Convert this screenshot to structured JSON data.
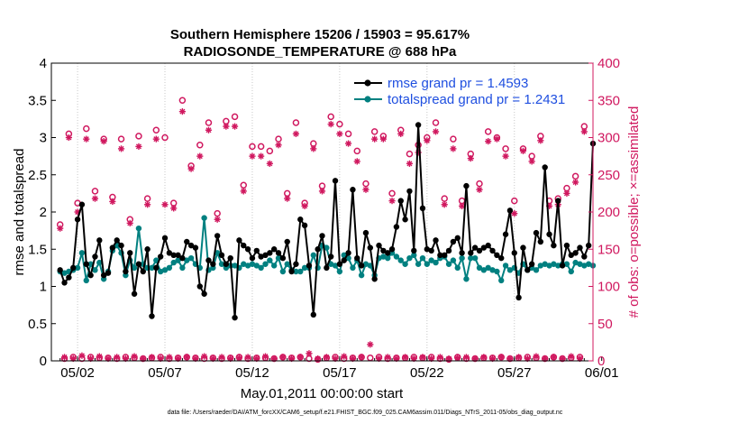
{
  "chart_data": {
    "type": "line",
    "title": "Southern Hemisphere 15206 / 15903 = 95.617%",
    "subtitle": "RADIOSONDE_TEMPERATURE @ 688 hPa",
    "xlabel": "May.01,2011 00:00:00 start",
    "ylabel_left": "rmse and totalspread",
    "ylabel_right": "# of obs: o=possible; ×=assimilated",
    "footnote": "data file: /Users/raeder/DAI/ATM_forcXX/CAM6_setup/f.e21.FHIST_BGC.f09_025.CAM6assim.011/Diags_NTrS_2011-05/obs_diag_output.nc",
    "xlim_days": [
      0.5,
      31.5
    ],
    "ylim_left": [
      0,
      4
    ],
    "ylim_right": [
      0,
      400
    ],
    "x_ticks": [
      {
        "day": 2,
        "label": "05/02"
      },
      {
        "day": 7,
        "label": "05/07"
      },
      {
        "day": 12,
        "label": "05/12"
      },
      {
        "day": 17,
        "label": "05/17"
      },
      {
        "day": 22,
        "label": "05/22"
      },
      {
        "day": 27,
        "label": "05/27"
      },
      {
        "day": 32,
        "label": "06/01"
      }
    ],
    "y_ticks_left": [
      "0",
      "0.5",
      "1",
      "1.5",
      "2",
      "2.5",
      "3",
      "3.5",
      "4"
    ],
    "y_ticks_right": [
      "0",
      "50",
      "100",
      "150",
      "200",
      "250",
      "300",
      "350",
      "400"
    ],
    "x_start_day": 1.0,
    "x_step_day": 0.25,
    "legend": [
      {
        "name": "rmse  grand pr = 1.4593",
        "color": "#000000"
      },
      {
        "name": "totalspread  grand pr = 1.2431",
        "color": "#008080"
      }
    ],
    "series": [
      {
        "name": "rmse",
        "color": "#000000",
        "values": [
          1.22,
          1.05,
          1.12,
          1.25,
          1.9,
          2.1,
          1.3,
          1.15,
          1.4,
          1.62,
          1.15,
          1.18,
          1.52,
          1.62,
          1.55,
          1.2,
          1.45,
          0.9,
          1.3,
          1.2,
          1.5,
          0.6,
          1.25,
          1.4,
          1.65,
          1.45,
          1.42,
          1.42,
          1.38,
          1.6,
          1.55,
          1.52,
          1.0,
          0.9,
          1.35,
          1.3,
          1.68,
          1.42,
          1.3,
          1.38,
          0.58,
          1.62,
          1.55,
          1.5,
          1.38,
          1.48,
          1.4,
          1.42,
          1.45,
          1.5,
          1.45,
          1.38,
          1.6,
          1.2,
          1.3,
          1.9,
          1.82,
          1.28,
          0.62,
          1.5,
          1.68,
          1.25,
          1.4,
          2.42,
          1.3,
          1.35,
          1.45,
          2.3,
          1.38,
          1.28,
          1.72,
          1.52,
          1.1,
          1.55,
          1.48,
          1.45,
          1.5,
          1.8,
          2.15,
          1.9,
          2.28,
          1.48,
          3.17,
          2.05,
          1.5,
          1.48,
          1.62,
          1.42,
          1.42,
          1.48,
          1.6,
          1.65,
          1.45,
          2.35,
          1.45,
          1.52,
          1.48,
          1.52,
          1.55,
          1.48,
          1.42,
          1.38,
          1.7,
          2.02,
          1.45,
          0.85,
          1.52,
          1.22,
          1.3,
          1.72,
          1.6,
          2.6,
          1.7,
          1.55,
          2.15,
          1.28,
          1.55,
          1.42,
          1.45,
          1.52,
          1.4,
          1.55,
          2.92
        ]
      },
      {
        "name": "totalspread",
        "color": "#008080",
        "values": [
          1.2,
          1.18,
          1.2,
          1.22,
          1.25,
          1.45,
          1.08,
          1.3,
          1.22,
          1.32,
          1.1,
          1.2,
          1.48,
          1.55,
          1.45,
          1.15,
          1.35,
          1.25,
          1.78,
          1.3,
          1.25,
          1.25,
          1.35,
          1.2,
          1.22,
          1.25,
          1.32,
          1.35,
          1.25,
          1.35,
          1.38,
          1.3,
          1.25,
          1.92,
          1.22,
          1.25,
          1.45,
          1.3,
          1.25,
          1.28,
          1.28,
          1.25,
          1.3,
          1.28,
          1.3,
          1.28,
          1.25,
          1.3,
          1.35,
          1.28,
          1.38,
          1.2,
          1.3,
          1.22,
          1.2,
          1.2,
          1.25,
          1.25,
          1.42,
          1.25,
          1.55,
          1.52,
          1.3,
          1.28,
          1.2,
          1.42,
          1.38,
          1.25,
          1.35,
          1.15,
          1.3,
          1.28,
          1.15,
          1.38,
          1.4,
          1.38,
          1.45,
          1.4,
          1.35,
          1.3,
          1.38,
          1.42,
          1.3,
          1.38,
          1.3,
          1.35,
          1.32,
          1.38,
          1.4,
          1.3,
          1.35,
          1.25,
          1.38,
          1.1,
          1.38,
          1.38,
          1.25,
          1.22,
          1.25,
          1.22,
          1.2,
          1.08,
          1.28,
          1.22,
          1.25,
          1.18,
          1.3,
          1.22,
          1.25,
          1.22,
          1.28,
          1.3,
          1.28,
          1.3,
          1.28,
          1.3,
          1.3,
          1.2,
          1.32,
          1.3,
          1.28,
          1.3,
          1.28
        ]
      },
      {
        "name": "obs possible",
        "color": "#d0185f",
        "values": [
          183,
          3,
          305,
          5,
          212,
          3,
          312,
          5,
          228,
          4,
          298,
          4,
          220,
          3,
          298,
          5,
          190,
          4,
          302,
          3,
          218,
          4,
          310,
          5,
          300,
          3,
          212,
          4,
          350,
          5,
          262,
          4,
          290,
          3,
          320,
          4,
          198,
          3,
          322,
          4,
          328,
          5,
          236,
          3,
          288,
          4,
          288,
          4,
          282,
          3,
          298,
          5,
          225,
          4,
          320,
          5,
          212,
          3,
          292,
          2,
          235,
          4,
          328,
          5,
          318,
          3,
          305,
          4,
          282,
          5,
          238,
          4,
          308,
          5,
          302,
          3,
          225,
          4,
          310,
          4,
          278,
          5,
          290,
          4,
          300,
          5,
          320,
          3,
          218,
          2,
          298,
          5,
          215,
          3,
          278,
          3,
          238,
          4,
          308,
          4,
          300,
          5,
          285,
          3,
          215,
          4,
          285,
          5,
          275,
          4,
          302,
          3,
          215,
          5,
          218,
          3,
          232,
          4,
          248,
          5,
          315
        ]
      },
      {
        "name": "obs assimilated",
        "color": "#d0185f",
        "values": [
          178,
          5,
          300,
          3,
          200,
          7,
          298,
          3,
          218,
          6,
          295,
          3,
          214,
          5,
          285,
          3,
          185,
          6,
          288,
          3,
          210,
          5,
          298,
          3,
          210,
          5,
          205,
          3,
          335,
          5,
          258,
          3,
          275,
          6,
          310,
          3,
          190,
          5,
          315,
          3,
          315,
          4,
          228,
          5,
          275,
          3,
          275,
          6,
          265,
          3,
          290,
          5,
          218,
          3,
          305,
          5,
          208,
          10,
          285,
          3,
          228,
          5,
          318,
          3,
          305,
          6,
          292,
          3,
          268,
          5,
          230,
          22,
          298,
          3,
          298,
          5,
          215,
          3,
          305,
          5,
          265,
          3,
          280,
          5,
          296,
          3,
          308,
          5,
          210,
          3,
          285,
          4,
          208,
          5,
          272,
          3,
          230,
          5,
          295,
          3,
          298,
          5,
          275,
          3,
          198,
          5,
          282,
          3,
          268,
          6,
          296,
          3,
          208,
          5,
          210,
          3,
          225,
          6,
          240,
          3,
          308
        ]
      }
    ]
  }
}
